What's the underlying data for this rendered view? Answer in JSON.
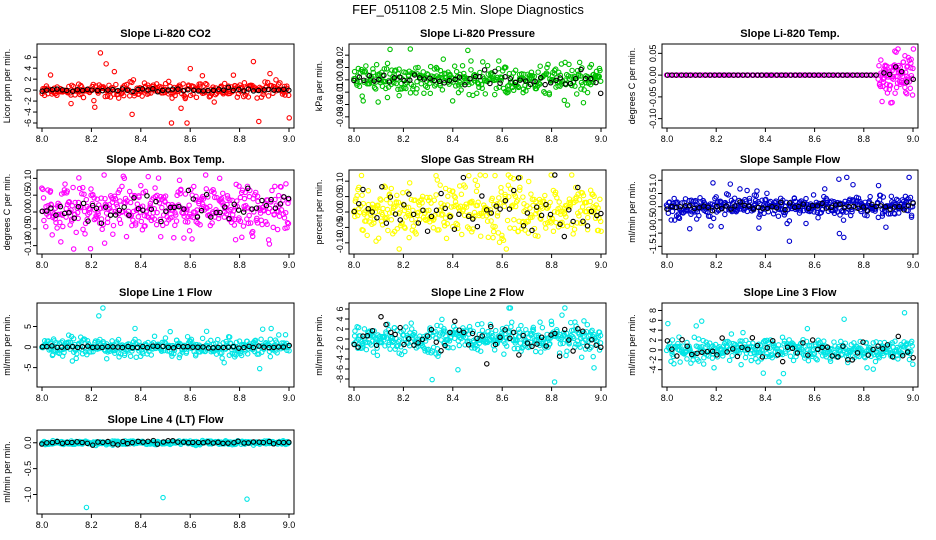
{
  "page": {
    "title": "FEF_051108  2.5 Min. Slope Diagnostics"
  },
  "colors": {
    "highlight": "#000000"
  },
  "chart_data": [
    {
      "type": "scatter",
      "title": "Slope Li-820 CO2",
      "xlabel": "",
      "ylabel": "Licor ppm per min.",
      "xlim": [
        8.0,
        9.0
      ],
      "ylim": [
        -6,
        7.5
      ],
      "xticks": [
        "8.0",
        "8.2",
        "8.4",
        "8.6",
        "8.8",
        "9.0"
      ],
      "yticks": [
        "-6",
        "-4",
        "-2",
        "0",
        "2",
        "4",
        "6"
      ],
      "series": [
        {
          "color": "#ff0000",
          "n": 320,
          "center": 0,
          "spread": 0.6,
          "outlier_spread": 3.2,
          "outlier_frac": 0.12,
          "x_min": 8.0,
          "x_max": 9.0
        },
        {
          "color": "#000000",
          "n": 50,
          "center": 0,
          "spread": 0.15,
          "outlier_spread": 0,
          "outlier_frac": 0,
          "x_min": 8.0,
          "x_max": 9.0
        }
      ]
    },
    {
      "type": "scatter",
      "title": "Slope Li-820 Pressure",
      "xlabel": "",
      "ylabel": "kPa per min.",
      "xlim": [
        8.0,
        9.0
      ],
      "ylim": [
        -0.035,
        0.025
      ],
      "xticks": [
        "8.0",
        "8.2",
        "8.4",
        "8.6",
        "8.8",
        "9.0"
      ],
      "yticks": [
        "-0.03",
        "-0.02",
        "-0.01",
        "0.00",
        "0.01",
        "0.02"
      ],
      "series": [
        {
          "color": "#00c000",
          "n": 380,
          "center": 0,
          "spread": 0.006,
          "outlier_spread": 0.018,
          "outlier_frac": 0.06,
          "x_min": 8.0,
          "x_max": 9.0
        },
        {
          "color": "#000000",
          "n": 50,
          "center": 0,
          "spread": 0.003,
          "outlier_spread": 0.01,
          "outlier_frac": 0.1,
          "x_min": 8.0,
          "x_max": 9.0
        }
      ]
    },
    {
      "type": "scatter",
      "title": "Slope Li-820 Temp.",
      "xlabel": "",
      "ylabel": "degrees C per min.",
      "xlim": [
        8.0,
        9.0
      ],
      "ylim": [
        -0.11,
        0.06
      ],
      "xticks": [
        "8.0",
        "8.2",
        "8.4",
        "8.6",
        "8.8",
        "9.0"
      ],
      "yticks": [
        "-0.10",
        "-0.05",
        "0.00",
        "0.05"
      ],
      "series": [
        {
          "color": "#ff00ff",
          "n": 90,
          "center": 0,
          "spread": 0.0,
          "outlier_spread": 0,
          "outlier_frac": 0,
          "x_min": 8.0,
          "x_max": 8.85
        },
        {
          "color": "#ff00ff",
          "n": 90,
          "center": 0,
          "spread": 0.025,
          "outlier_spread": 0.05,
          "outlier_frac": 0.12,
          "x_min": 8.86,
          "x_max": 9.0
        },
        {
          "color": "#000000",
          "n": 45,
          "center": 0,
          "spread": 0.0,
          "outlier_spread": 0,
          "outlier_frac": 0,
          "x_min": 8.0,
          "x_max": 8.85
        },
        {
          "color": "#000000",
          "n": 6,
          "center": 0,
          "spread": 0.015,
          "outlier_spread": 0,
          "outlier_frac": 0,
          "x_min": 8.88,
          "x_max": 9.0
        }
      ]
    },
    {
      "type": "scatter",
      "title": "Slope Amb. Box Temp.",
      "xlabel": "",
      "ylabel": "degrees C per min.",
      "xlim": [
        8.0,
        9.0
      ],
      "ylim": [
        -0.11,
        0.11
      ],
      "xticks": [
        "8.0",
        "8.2",
        "8.4",
        "8.6",
        "8.8",
        "9.0"
      ],
      "yticks": [
        "-0.10",
        "-0.05",
        "0.00",
        "0.05",
        "0.10"
      ],
      "series": [
        {
          "color": "#ff00ff",
          "n": 420,
          "center": 0.01,
          "spread": 0.035,
          "outlier_spread": 0.07,
          "outlier_frac": 0.04,
          "x_min": 8.0,
          "x_max": 9.0
        },
        {
          "color": "#000000",
          "n": 55,
          "center": 0.01,
          "spread": 0.025,
          "outlier_spread": 0,
          "outlier_frac": 0,
          "x_min": 8.0,
          "x_max": 9.0
        }
      ]
    },
    {
      "type": "scatter",
      "title": "Slope Gas Stream RH",
      "xlabel": "",
      "ylabel": "percent per min.",
      "xlim": [
        8.0,
        9.0
      ],
      "ylim": [
        -0.12,
        0.12
      ],
      "xticks": [
        "8.0",
        "8.2",
        "8.4",
        "8.6",
        "8.8",
        "9.0"
      ],
      "yticks": [
        "-0.10",
        "-0.05",
        "0.00",
        "0.05",
        "0.10"
      ],
      "series": [
        {
          "color": "#ffff00",
          "n": 420,
          "center": 0.005,
          "spread": 0.045,
          "outlier_spread": 0.08,
          "outlier_frac": 0.05,
          "x_min": 8.0,
          "x_max": 9.0
        },
        {
          "color": "#000000",
          "n": 55,
          "center": 0.0,
          "spread": 0.045,
          "outlier_spread": 0,
          "outlier_frac": 0,
          "x_min": 8.0,
          "x_max": 9.0
        }
      ]
    },
    {
      "type": "scatter",
      "title": "Slope Sample Flow",
      "xlabel": "",
      "ylabel": "ml/min per min.",
      "xlim": [
        8.0,
        9.0
      ],
      "ylim": [
        -1.6,
        1.2
      ],
      "xticks": [
        "8.0",
        "8.2",
        "8.4",
        "8.6",
        "8.8",
        "9.0"
      ],
      "yticks": [
        "-1.5",
        "-1.0",
        "-0.5",
        "0.0",
        "0.5",
        "1.0"
      ],
      "series": [
        {
          "color": "#0000cc",
          "n": 420,
          "center": 0,
          "spread": 0.18,
          "outlier_spread": 0.6,
          "outlier_frac": 0.1,
          "x_min": 8.0,
          "x_max": 9.0
        },
        {
          "color": "#000000",
          "n": 55,
          "center": 0,
          "spread": 0.08,
          "outlier_spread": 0,
          "outlier_frac": 0,
          "x_min": 8.0,
          "x_max": 9.0
        }
      ]
    },
    {
      "type": "scatter",
      "title": "Slope Line 1 Flow",
      "xlabel": "",
      "ylabel": "ml/min per min.",
      "xlim": [
        8.0,
        9.0
      ],
      "ylim": [
        -8.5,
        9.5
      ],
      "xticks": [
        "8.0",
        "8.2",
        "8.4",
        "8.6",
        "8.8",
        "9.0"
      ],
      "yticks": [
        "-5",
        "0",
        "5"
      ],
      "series": [
        {
          "color": "#00e5e5",
          "n": 380,
          "center": 0,
          "spread": 1.1,
          "outlier_spread": 4.5,
          "outlier_frac": 0.08,
          "x_min": 8.0,
          "x_max": 9.0
        },
        {
          "color": "#000000",
          "n": 50,
          "center": 0,
          "spread": 0.15,
          "outlier_spread": 0,
          "outlier_frac": 0,
          "x_min": 8.0,
          "x_max": 9.0
        }
      ]
    },
    {
      "type": "scatter",
      "title": "Slope Line 2 Flow",
      "xlabel": "",
      "ylabel": "ml/min per min.",
      "xlim": [
        8.0,
        9.0
      ],
      "ylim": [
        -8.6,
        6.2
      ],
      "xticks": [
        "8.0",
        "8.2",
        "8.4",
        "8.6",
        "8.8",
        "9.0"
      ],
      "yticks": [
        "-8",
        "-6",
        "-4",
        "-2",
        "0",
        "2",
        "4",
        "6"
      ],
      "series": [
        {
          "color": "#00e5e5",
          "n": 420,
          "center": 0,
          "spread": 1.3,
          "outlier_spread": 4,
          "outlier_frac": 0.06,
          "x_min": 8.0,
          "x_max": 9.0
        },
        {
          "color": "#000000",
          "n": 55,
          "center": 0,
          "spread": 1.8,
          "outlier_spread": 0,
          "outlier_frac": 0,
          "x_min": 8.0,
          "x_max": 9.0
        }
      ]
    },
    {
      "type": "scatter",
      "title": "Slope Line 3 Flow",
      "xlabel": "",
      "ylabel": "ml/min per min.",
      "xlim": [
        8.0,
        9.0
      ],
      "ylim": [
        -6.5,
        8.5
      ],
      "xticks": [
        "8.0",
        "8.2",
        "8.4",
        "8.6",
        "8.8",
        "9.0"
      ],
      "yticks": [
        "-4",
        "-2",
        "0",
        "2",
        "4",
        "6",
        "8"
      ],
      "series": [
        {
          "color": "#00e5e5",
          "n": 400,
          "center": 0,
          "spread": 1.0,
          "outlier_spread": 3.5,
          "outlier_frac": 0.06,
          "x_min": 8.0,
          "x_max": 9.0
        },
        {
          "color": "#000000",
          "n": 50,
          "center": 0,
          "spread": 1.3,
          "outlier_spread": 0,
          "outlier_frac": 0,
          "x_min": 8.0,
          "x_max": 9.0
        }
      ]
    },
    {
      "type": "scatter",
      "title": "Slope Line 4 (LT) Flow",
      "xlabel": "",
      "ylabel": "ml/min per min.",
      "xlim": [
        8.0,
        9.0
      ],
      "ylim": [
        -1.28,
        0.15
      ],
      "xticks": [
        "8.0",
        "8.2",
        "8.4",
        "8.6",
        "8.8",
        "9.0"
      ],
      "yticks": [
        "-1.0",
        "-0.5",
        "0.0"
      ],
      "points_extra": [
        [
          8.18,
          -1.25
        ],
        [
          8.49,
          -1.06
        ],
        [
          8.83,
          -1.09
        ]
      ],
      "series": [
        {
          "color": "#00e5e5",
          "n": 360,
          "center": 0,
          "spread": 0.018,
          "outlier_spread": 0,
          "outlier_frac": 0,
          "x_min": 8.0,
          "x_max": 9.0
        },
        {
          "color": "#000000",
          "n": 50,
          "center": 0,
          "spread": 0.02,
          "outlier_spread": 0,
          "outlier_frac": 0,
          "x_min": 8.0,
          "x_max": 9.0
        }
      ]
    }
  ]
}
